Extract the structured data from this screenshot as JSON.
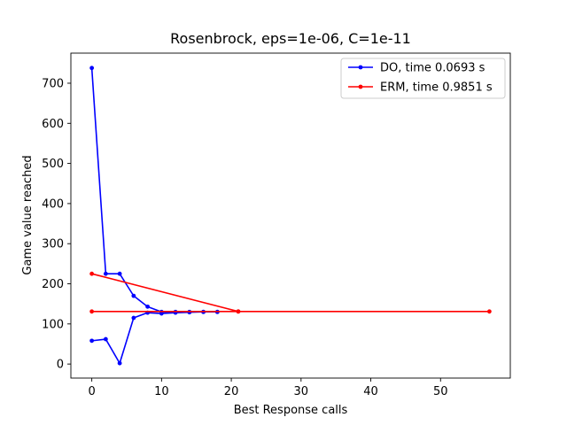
{
  "chart_data": {
    "type": "line",
    "title": "Rosenbrock, eps=1e-06, C=1e-11",
    "xlabel": "Best Response calls",
    "ylabel": "Game value reached",
    "xlim": [
      -3,
      60
    ],
    "ylim": [
      -35,
      775
    ],
    "xticks": [
      "0",
      "10",
      "20",
      "30",
      "40",
      "50"
    ],
    "xtick_values": [
      0,
      10,
      20,
      30,
      40,
      50
    ],
    "yticks": [
      "0",
      "100",
      "200",
      "300",
      "400",
      "500",
      "600",
      "700"
    ],
    "ytick_values": [
      0,
      100,
      200,
      300,
      400,
      500,
      600,
      700
    ],
    "grid": false,
    "legend_position": "top-right",
    "series": [
      {
        "name": "DO, time 0.0693 s",
        "color": "#0000ff",
        "lines": [
          {
            "x": [
              0,
              2,
              4,
              6,
              8,
              10,
              12,
              14,
              16,
              18
            ],
            "y": [
              738,
              225,
              225,
              170,
              143,
              130,
              130,
              130,
              130,
              130
            ]
          },
          {
            "x": [
              0,
              2,
              4,
              6,
              8,
              10,
              12,
              14,
              16,
              18
            ],
            "y": [
              58,
              62,
              2,
              115,
              128,
              126,
              128,
              129,
              130,
              130
            ]
          }
        ]
      },
      {
        "name": "ERM, time 0.9851 s",
        "color": "#ff0000",
        "lines": [
          {
            "x": [
              0,
              21
            ],
            "y": [
              225,
              131
            ]
          },
          {
            "x": [
              0,
              21,
              57
            ],
            "y": [
              131,
              131,
              131
            ]
          }
        ]
      }
    ]
  }
}
